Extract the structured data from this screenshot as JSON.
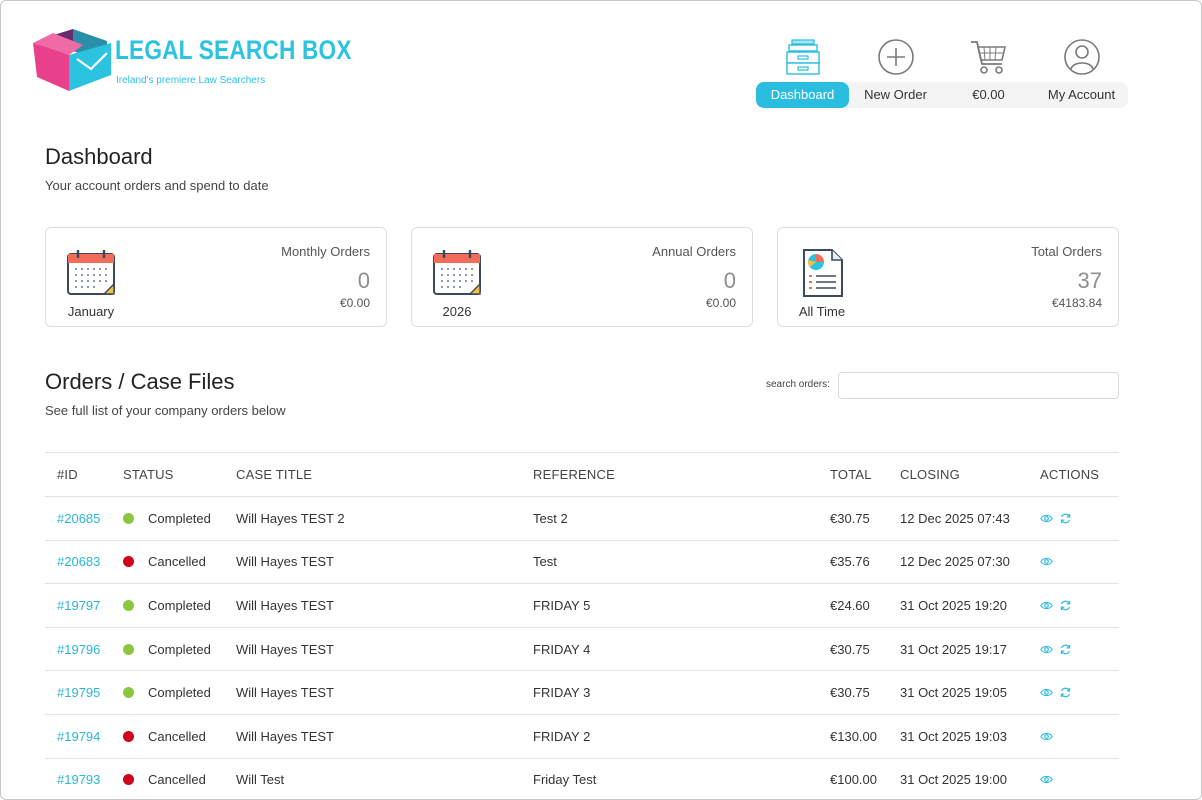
{
  "brand": {
    "name": "LEGAL SEARCH BOX",
    "tagline": "Ireland's premiere Law Searchers",
    "colors": {
      "accent": "#2bbde0",
      "pink": "#e8408a",
      "purple": "#6a2b6e"
    }
  },
  "nav": {
    "items": [
      {
        "label": "Dashboard",
        "icon": "inbox-tray-icon",
        "active": true
      },
      {
        "label": "New Order",
        "icon": "plus-circle-icon",
        "active": false
      },
      {
        "label": "€0.00",
        "icon": "shopping-cart-icon",
        "active": false
      },
      {
        "label": "My Account",
        "icon": "user-circle-icon",
        "active": false
      }
    ]
  },
  "dashboard": {
    "title": "Dashboard",
    "subtitle": "Your account orders and spend to date"
  },
  "cards": [
    {
      "icon": "calendar-icon",
      "icon_label": "January",
      "title": "Monthly Orders",
      "value": "0",
      "amount": "€0.00"
    },
    {
      "icon": "calendar-icon",
      "icon_label": "2026",
      "title": "Annual Orders",
      "value": "0",
      "amount": "€0.00"
    },
    {
      "icon": "report-document-icon",
      "icon_label": "All Time",
      "title": "Total Orders",
      "value": "37",
      "amount": "€4183.84"
    }
  ],
  "orders": {
    "title": "Orders / Case Files",
    "subtitle": "See full list of your company orders below",
    "search": {
      "label": "search orders:",
      "value": "",
      "placeholder": ""
    },
    "columns": [
      "#ID",
      "STATUS",
      "CASE TITLE",
      "REFERENCE",
      "TOTAL",
      "CLOSING",
      "ACTIONS"
    ],
    "status_colors": {
      "Completed": "#8cc63f",
      "Cancelled": "#d0021b"
    },
    "rows": [
      {
        "id": "#20685",
        "status": "Completed",
        "case_title": "Will Hayes TEST 2",
        "reference": "Test 2",
        "total": "€30.75",
        "closing": "12 Dec 2025 07:43",
        "actions": [
          "view-eye-icon",
          "reorder-refresh-icon"
        ]
      },
      {
        "id": "#20683",
        "status": "Cancelled",
        "case_title": "Will Hayes TEST",
        "reference": "Test",
        "total": "€35.76",
        "closing": "12 Dec 2025 07:30",
        "actions": [
          "view-eye-icon"
        ]
      },
      {
        "id": "#19797",
        "status": "Completed",
        "case_title": "Will Hayes TEST",
        "reference": "FRIDAY 5",
        "total": "€24.60",
        "closing": "31 Oct 2025 19:20",
        "actions": [
          "view-eye-icon",
          "reorder-refresh-icon"
        ]
      },
      {
        "id": "#19796",
        "status": "Completed",
        "case_title": "Will Hayes TEST",
        "reference": "FRIDAY 4",
        "total": "€30.75",
        "closing": "31 Oct 2025 19:17",
        "actions": [
          "view-eye-icon",
          "reorder-refresh-icon"
        ]
      },
      {
        "id": "#19795",
        "status": "Completed",
        "case_title": "Will Hayes TEST",
        "reference": "FRIDAY 3",
        "total": "€30.75",
        "closing": "31 Oct 2025 19:05",
        "actions": [
          "view-eye-icon",
          "reorder-refresh-icon"
        ]
      },
      {
        "id": "#19794",
        "status": "Cancelled",
        "case_title": "Will Hayes TEST",
        "reference": "FRIDAY 2",
        "total": "€130.00",
        "closing": "31 Oct 2025 19:03",
        "actions": [
          "view-eye-icon"
        ]
      },
      {
        "id": "#19793",
        "status": "Cancelled",
        "case_title": "Will Test",
        "reference": "Friday Test",
        "total": "€100.00",
        "closing": "31 Oct 2025 19:00",
        "actions": [
          "view-eye-icon"
        ]
      }
    ]
  }
}
